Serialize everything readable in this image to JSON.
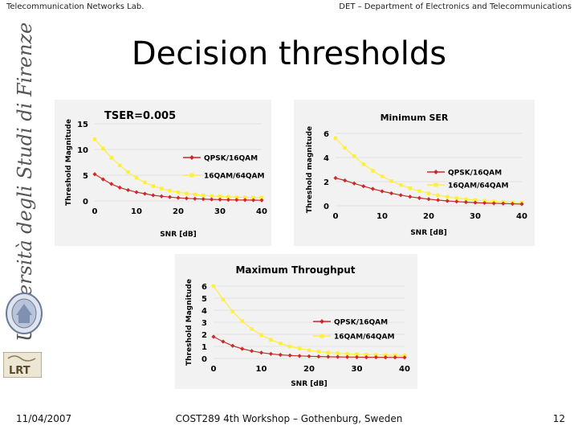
{
  "header": {
    "left": "Telecommunication Networks Lab.",
    "right": "DET – Department of Electronics and Telecommunications"
  },
  "slide": {
    "title": "Decision thresholds",
    "side_text": "Università degli Studi di Firenze",
    "logo_text": "LRT"
  },
  "footer": {
    "date": "11/04/2007",
    "center": "COST289 4th Workshop – Gothenburg, Sweden",
    "page": "12"
  },
  "colors": {
    "panel_bg": "#f2f2f2",
    "series_red": "#cc2a2a",
    "series_yellow": "#ffef3a"
  },
  "chart_data": [
    {
      "type": "line",
      "title": "TSER=0.005",
      "xlabel": "SNR [dB]",
      "ylabel": "Threshold Magnitude",
      "xlim": [
        0,
        40
      ],
      "ylim": [
        0,
        15
      ],
      "xticks": [
        0,
        10,
        20,
        30,
        40
      ],
      "yticks": [
        0,
        5,
        10,
        15
      ],
      "legend_position": "middle-right",
      "x": [
        0,
        2,
        4,
        6,
        8,
        10,
        12,
        14,
        16,
        18,
        20,
        22,
        24,
        26,
        28,
        30,
        32,
        34,
        36,
        38,
        40
      ],
      "series": [
        {
          "name": "QPSK/16QAM",
          "color": "#cc2a2a",
          "marker": "diamond",
          "values": [
            5.2,
            4.2,
            3.3,
            2.6,
            2.1,
            1.7,
            1.4,
            1.1,
            0.9,
            0.75,
            0.6,
            0.5,
            0.42,
            0.36,
            0.3,
            0.26,
            0.22,
            0.19,
            0.17,
            0.15,
            0.13
          ]
        },
        {
          "name": "16QAM/64QAM",
          "color": "#ffef3a",
          "marker": "square",
          "values": [
            12.0,
            10.2,
            8.4,
            6.9,
            5.6,
            4.5,
            3.6,
            2.9,
            2.4,
            2.0,
            1.7,
            1.45,
            1.25,
            1.1,
            0.98,
            0.88,
            0.8,
            0.74,
            0.69,
            0.65,
            0.62
          ]
        }
      ]
    },
    {
      "type": "line",
      "title": "Minimum SER",
      "xlabel": "SNR [dB]",
      "ylabel": "Threshold magnitude",
      "xlim": [
        0,
        40
      ],
      "ylim": [
        0,
        6
      ],
      "xticks": [
        0,
        10,
        20,
        30,
        40
      ],
      "yticks": [
        0,
        2,
        4,
        6
      ],
      "legend_position": "middle-right",
      "x": [
        0,
        2,
        4,
        6,
        8,
        10,
        12,
        14,
        16,
        18,
        20,
        22,
        24,
        26,
        28,
        30,
        32,
        34,
        36,
        38,
        40
      ],
      "series": [
        {
          "name": "QPSK/16QAM",
          "color": "#cc2a2a",
          "marker": "diamond",
          "values": [
            2.3,
            2.1,
            1.85,
            1.62,
            1.4,
            1.2,
            1.03,
            0.88,
            0.75,
            0.64,
            0.55,
            0.47,
            0.4,
            0.35,
            0.3,
            0.26,
            0.23,
            0.2,
            0.18,
            0.16,
            0.14
          ]
        },
        {
          "name": "16QAM/64QAM",
          "color": "#ffef3a",
          "marker": "square",
          "values": [
            5.6,
            4.8,
            4.1,
            3.45,
            2.9,
            2.45,
            2.05,
            1.72,
            1.45,
            1.22,
            1.02,
            0.87,
            0.74,
            0.63,
            0.54,
            0.47,
            0.41,
            0.36,
            0.32,
            0.28,
            0.25
          ]
        }
      ]
    },
    {
      "type": "line",
      "title": "Maximum Throughput",
      "xlabel": "SNR [dB]",
      "ylabel": "Threshold Magnitude",
      "xlim": [
        0,
        40
      ],
      "ylim": [
        0,
        6
      ],
      "xticks": [
        0,
        10,
        20,
        30,
        40
      ],
      "yticks": [
        0,
        1,
        2,
        3,
        4,
        5,
        6
      ],
      "legend_position": "middle-right",
      "x": [
        0,
        2,
        4,
        6,
        8,
        10,
        12,
        14,
        16,
        18,
        20,
        22,
        24,
        26,
        28,
        30,
        32,
        34,
        36,
        38,
        40
      ],
      "series": [
        {
          "name": "QPSK/16QAM",
          "color": "#cc2a2a",
          "marker": "diamond",
          "values": [
            1.8,
            1.4,
            1.05,
            0.8,
            0.62,
            0.48,
            0.38,
            0.3,
            0.25,
            0.21,
            0.18,
            0.16,
            0.14,
            0.13,
            0.12,
            0.11,
            0.1,
            0.1,
            0.09,
            0.09,
            0.08
          ]
        },
        {
          "name": "16QAM/64QAM",
          "color": "#ffef3a",
          "marker": "square",
          "values": [
            6.0,
            4.9,
            3.9,
            3.1,
            2.45,
            1.95,
            1.55,
            1.25,
            1.0,
            0.82,
            0.68,
            0.57,
            0.49,
            0.43,
            0.38,
            0.35,
            0.32,
            0.3,
            0.28,
            0.27,
            0.26
          ]
        }
      ]
    }
  ]
}
